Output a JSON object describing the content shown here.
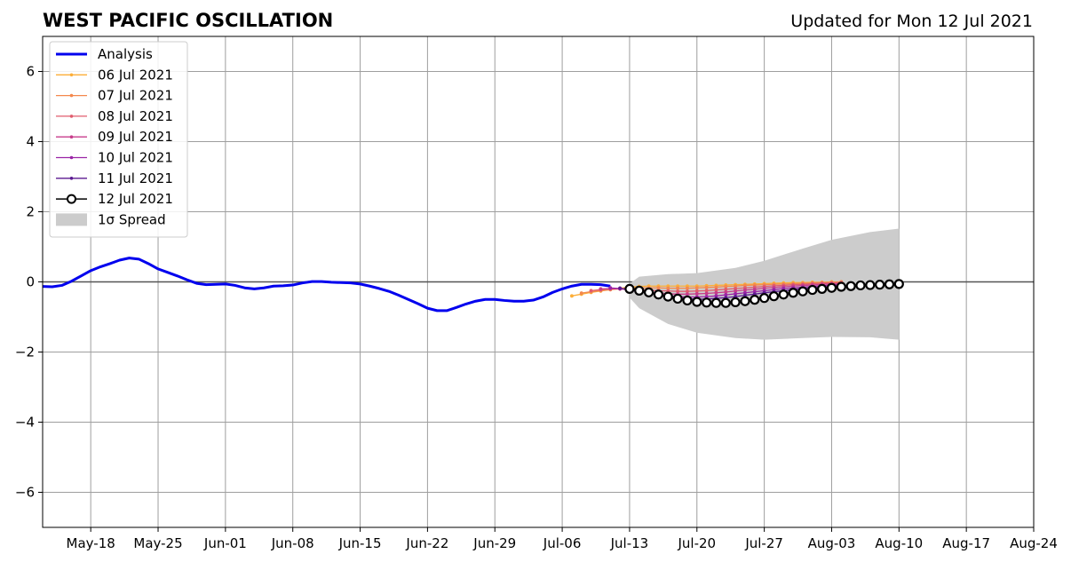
{
  "header": {
    "title": "WEST PACIFIC OSCILLATION",
    "updated": "Updated for Mon 12 Jul 2021"
  },
  "chart_data": {
    "type": "line",
    "title": "WEST PACIFIC OSCILLATION",
    "subtitle": "Updated for Mon 12 Jul 2021",
    "xlabel": "",
    "ylabel": "",
    "x_axis_type": "date",
    "xlim": [
      "2021-05-13",
      "2021-08-24"
    ],
    "ylim": [
      -7,
      7
    ],
    "x_tick_labels": [
      {
        "date": "2021-05-18",
        "label": "May-18"
      },
      {
        "date": "2021-05-25",
        "label": "May-25"
      },
      {
        "date": "2021-06-01",
        "label": "Jun-01"
      },
      {
        "date": "2021-06-08",
        "label": "Jun-08"
      },
      {
        "date": "2021-06-15",
        "label": "Jun-15"
      },
      {
        "date": "2021-06-22",
        "label": "Jun-22"
      },
      {
        "date": "2021-06-29",
        "label": "Jun-29"
      },
      {
        "date": "2021-07-06",
        "label": "Jul-06"
      },
      {
        "date": "2021-07-13",
        "label": "Jul-13"
      },
      {
        "date": "2021-07-20",
        "label": "Jul-20"
      },
      {
        "date": "2021-07-27",
        "label": "Jul-27"
      },
      {
        "date": "2021-08-03",
        "label": "Aug-03"
      },
      {
        "date": "2021-08-10",
        "label": "Aug-10"
      },
      {
        "date": "2021-08-17",
        "label": "Aug-17"
      },
      {
        "date": "2021-08-24",
        "label": "Aug-24"
      }
    ],
    "y_ticks": [
      -6,
      -4,
      -2,
      0,
      2,
      4,
      6
    ],
    "y_tick_labels": [
      "−6",
      "−4",
      "−2",
      "0",
      "2",
      "4",
      "6"
    ],
    "grid": true,
    "zero_line": true,
    "legend": {
      "placement": "top-left",
      "entries": [
        "Analysis",
        "06 Jul 2021",
        "07 Jul 2021",
        "08 Jul 2021",
        "09 Jul 2021",
        "10 Jul 2021",
        "11 Jul 2021",
        "12 Jul 2021",
        "1σ Spread"
      ]
    },
    "analysis": {
      "name": "Analysis",
      "color": "#0000ee",
      "x": [
        "2021-05-13",
        "2021-05-14",
        "2021-05-15",
        "2021-05-16",
        "2021-05-17",
        "2021-05-18",
        "2021-05-19",
        "2021-05-20",
        "2021-05-21",
        "2021-05-22",
        "2021-05-23",
        "2021-05-24",
        "2021-05-25",
        "2021-05-26",
        "2021-05-27",
        "2021-05-28",
        "2021-05-29",
        "2021-05-30",
        "2021-05-31",
        "2021-06-01",
        "2021-06-02",
        "2021-06-03",
        "2021-06-04",
        "2021-06-05",
        "2021-06-06",
        "2021-06-07",
        "2021-06-08",
        "2021-06-09",
        "2021-06-10",
        "2021-06-11",
        "2021-06-12",
        "2021-06-13",
        "2021-06-14",
        "2021-06-15",
        "2021-06-16",
        "2021-06-17",
        "2021-06-18",
        "2021-06-19",
        "2021-06-20",
        "2021-06-21",
        "2021-06-22",
        "2021-06-23",
        "2021-06-24",
        "2021-06-25",
        "2021-06-26",
        "2021-06-27",
        "2021-06-28",
        "2021-06-29",
        "2021-06-30",
        "2021-07-01",
        "2021-07-02",
        "2021-07-03",
        "2021-07-04",
        "2021-07-05",
        "2021-07-06",
        "2021-07-07",
        "2021-07-08",
        "2021-07-09",
        "2021-07-10",
        "2021-07-11"
      ],
      "values": [
        -0.13,
        -0.14,
        -0.1,
        0.02,
        0.17,
        0.32,
        0.43,
        0.52,
        0.62,
        0.68,
        0.65,
        0.52,
        0.37,
        0.27,
        0.17,
        0.06,
        -0.04,
        -0.08,
        -0.07,
        -0.06,
        -0.1,
        -0.17,
        -0.2,
        -0.17,
        -0.12,
        -0.11,
        -0.09,
        -0.03,
        0.01,
        0.01,
        -0.01,
        -0.02,
        -0.03,
        -0.06,
        -0.12,
        -0.19,
        -0.27,
        -0.38,
        -0.5,
        -0.62,
        -0.75,
        -0.82,
        -0.82,
        -0.73,
        -0.63,
        -0.55,
        -0.5,
        -0.5,
        -0.53,
        -0.55,
        -0.55,
        -0.52,
        -0.43,
        -0.3,
        -0.2,
        -0.12,
        -0.07,
        -0.07,
        -0.08,
        -0.12
      ]
    },
    "forecasts": [
      {
        "name": "06 Jul 2021",
        "color": "#fcae38",
        "start": "2021-07-07",
        "values": [
          -0.4,
          -0.35,
          -0.3,
          -0.26,
          -0.22,
          -0.18,
          -0.15,
          -0.13,
          -0.12,
          -0.12,
          -0.12,
          -0.12,
          -0.12,
          -0.12,
          -0.11,
          -0.1,
          -0.09,
          -0.08,
          -0.07,
          -0.06,
          -0.05,
          -0.04,
          -0.03,
          -0.02,
          -0.02,
          -0.01,
          -0.01,
          0.0,
          0.0
        ]
      },
      {
        "name": "07 Jul 2021",
        "color": "#f4884d",
        "start": "2021-07-08",
        "values": [
          -0.32,
          -0.28,
          -0.25,
          -0.22,
          -0.2,
          -0.18,
          -0.17,
          -0.17,
          -0.17,
          -0.18,
          -0.18,
          -0.18,
          -0.17,
          -0.16,
          -0.15,
          -0.13,
          -0.12,
          -0.1,
          -0.09,
          -0.08,
          -0.07,
          -0.06,
          -0.05,
          -0.04,
          -0.03,
          -0.02,
          -0.01,
          0.0
        ]
      },
      {
        "name": "08 Jul 2021",
        "color": "#e05c6d",
        "start": "2021-07-09",
        "values": [
          -0.25,
          -0.22,
          -0.2,
          -0.2,
          -0.21,
          -0.22,
          -0.24,
          -0.25,
          -0.26,
          -0.27,
          -0.27,
          -0.26,
          -0.25,
          -0.23,
          -0.21,
          -0.19,
          -0.17,
          -0.15,
          -0.13,
          -0.11,
          -0.1,
          -0.08,
          -0.07,
          -0.05,
          -0.04,
          -0.03,
          -0.02
        ]
      },
      {
        "name": "09 Jul 2021",
        "color": "#c73d8b",
        "start": "2021-07-10",
        "values": [
          -0.2,
          -0.19,
          -0.2,
          -0.23,
          -0.26,
          -0.29,
          -0.32,
          -0.34,
          -0.35,
          -0.35,
          -0.34,
          -0.33,
          -0.31,
          -0.29,
          -0.26,
          -0.23,
          -0.21,
          -0.18,
          -0.16,
          -0.14,
          -0.12,
          -0.1,
          -0.09,
          -0.07,
          -0.06,
          -0.05
        ]
      },
      {
        "name": "10 Jul 2021",
        "color": "#9a24a6",
        "start": "2021-07-11",
        "values": [
          -0.17,
          -0.19,
          -0.23,
          -0.28,
          -0.32,
          -0.36,
          -0.4,
          -0.42,
          -0.43,
          -0.43,
          -0.42,
          -0.4,
          -0.37,
          -0.34,
          -0.31,
          -0.28,
          -0.25,
          -0.22,
          -0.19,
          -0.17,
          -0.15,
          -0.13,
          -0.11,
          -0.09,
          -0.08
        ]
      },
      {
        "name": "11 Jul 2021",
        "color": "#5b1a91",
        "start": "2021-07-12",
        "values": [
          -0.18,
          -0.22,
          -0.27,
          -0.32,
          -0.37,
          -0.42,
          -0.46,
          -0.48,
          -0.49,
          -0.49,
          -0.47,
          -0.45,
          -0.42,
          -0.38,
          -0.35,
          -0.31,
          -0.28,
          -0.25,
          -0.22,
          -0.19,
          -0.17,
          -0.15,
          -0.13,
          -0.11
        ]
      }
    ],
    "latest_forecast": {
      "name": "12 Jul 2021",
      "color": "#000000",
      "marker_fill": "#ffffff",
      "x": [
        "2021-07-13",
        "2021-07-14",
        "2021-07-15",
        "2021-07-16",
        "2021-07-17",
        "2021-07-18",
        "2021-07-19",
        "2021-07-20",
        "2021-07-21",
        "2021-07-22",
        "2021-07-23",
        "2021-07-24",
        "2021-07-25",
        "2021-07-26",
        "2021-07-27",
        "2021-07-28",
        "2021-07-29",
        "2021-07-30",
        "2021-07-31",
        "2021-08-01",
        "2021-08-02",
        "2021-08-03",
        "2021-08-04",
        "2021-08-05",
        "2021-08-06",
        "2021-08-07",
        "2021-08-08",
        "2021-08-09",
        "2021-08-10"
      ],
      "values": [
        -0.2,
        -0.25,
        -0.3,
        -0.36,
        -0.42,
        -0.48,
        -0.53,
        -0.57,
        -0.59,
        -0.6,
        -0.6,
        -0.58,
        -0.55,
        -0.51,
        -0.46,
        -0.41,
        -0.36,
        -0.31,
        -0.27,
        -0.23,
        -0.2,
        -0.17,
        -0.14,
        -0.12,
        -0.1,
        -0.09,
        -0.08,
        -0.07,
        -0.06
      ]
    },
    "spread": {
      "name": "1σ Spread",
      "color": "#cccccc",
      "x": [
        "2021-07-13",
        "2021-07-14",
        "2021-07-17",
        "2021-07-20",
        "2021-07-24",
        "2021-07-27",
        "2021-07-31",
        "2021-08-03",
        "2021-08-07",
        "2021-08-10"
      ],
      "upper": [
        -0.05,
        0.15,
        0.22,
        0.25,
        0.4,
        0.6,
        0.95,
        1.2,
        1.42,
        1.52
      ],
      "lower": [
        -0.45,
        -0.75,
        -1.2,
        -1.45,
        -1.6,
        -1.65,
        -1.6,
        -1.57,
        -1.58,
        -1.65
      ]
    }
  }
}
